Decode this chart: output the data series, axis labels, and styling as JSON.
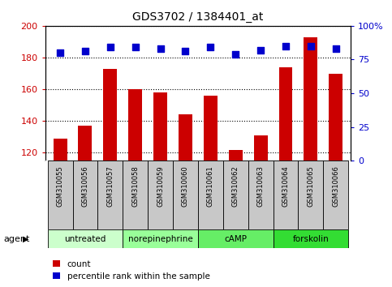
{
  "title": "GDS3702 / 1384401_at",
  "samples": [
    "GSM310055",
    "GSM310056",
    "GSM310057",
    "GSM310058",
    "GSM310059",
    "GSM310060",
    "GSM310061",
    "GSM310062",
    "GSM310063",
    "GSM310064",
    "GSM310065",
    "GSM310066"
  ],
  "counts": [
    129,
    137,
    173,
    160,
    158,
    144,
    156,
    122,
    131,
    174,
    193,
    170
  ],
  "percentiles": [
    80,
    81,
    84,
    84,
    83,
    81,
    84,
    79,
    82,
    85,
    85,
    83
  ],
  "ylim_left": [
    115,
    200
  ],
  "ylim_right": [
    0,
    100
  ],
  "yticks_left": [
    120,
    140,
    160,
    180,
    200
  ],
  "yticks_right": [
    0,
    25,
    50,
    75,
    100
  ],
  "bar_color": "#cc0000",
  "dot_color": "#0000cc",
  "groups": [
    {
      "label": "untreated",
      "start": 0,
      "end": 3,
      "color": "#ccffcc"
    },
    {
      "label": "norepinephrine",
      "start": 3,
      "end": 6,
      "color": "#99ff99"
    },
    {
      "label": "cAMP",
      "start": 6,
      "end": 9,
      "color": "#66ee66"
    },
    {
      "label": "forskolin",
      "start": 9,
      "end": 12,
      "color": "#33dd33"
    }
  ],
  "bar_width": 0.55,
  "dot_size": 28,
  "bar_color_left": "#cc0000",
  "tick_label_color_left": "#cc0000",
  "tick_label_color_right": "#0000cc",
  "legend_count_label": "count",
  "legend_pct_label": "percentile rank within the sample",
  "agent_label": "agent"
}
